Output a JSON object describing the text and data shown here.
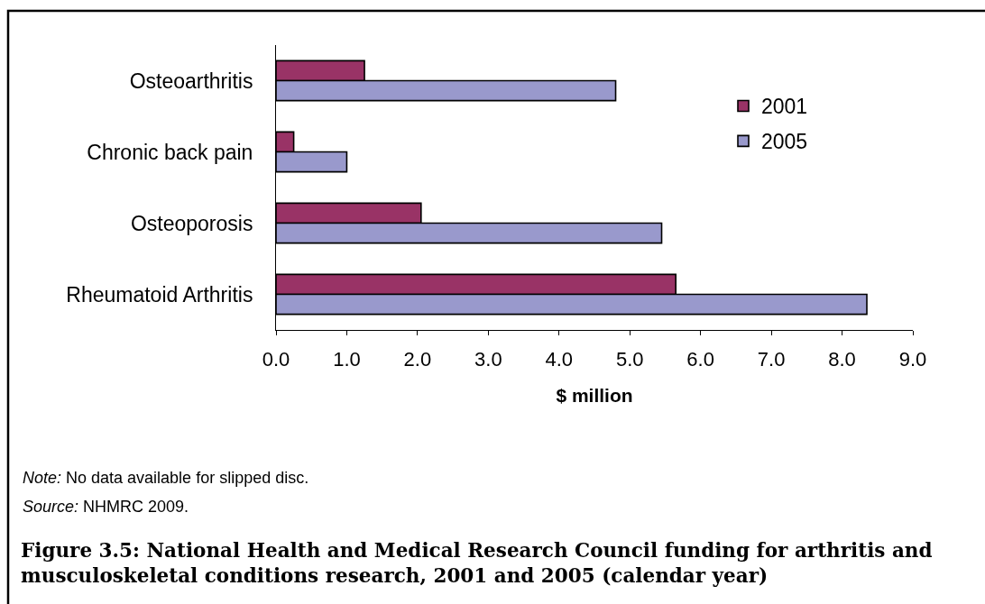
{
  "chart_data": {
    "type": "bar",
    "orientation": "horizontal",
    "title": "Figure 3.5: National Health and Medical Research Council funding for arthritis and musculoskeletal conditions research, 2001 and 2005 (calendar year)",
    "xlabel": "$ million",
    "categories": [
      "Osteoarthritis",
      "Chronic back pain",
      "Osteoporosis",
      "Rheumatoid Arthritis"
    ],
    "series": [
      {
        "name": "2001",
        "color": "#993366",
        "values": [
          1.25,
          0.25,
          2.05,
          5.65
        ]
      },
      {
        "name": "2005",
        "color": "#9999cc",
        "values": [
          4.8,
          1.0,
          5.45,
          8.35
        ]
      }
    ],
    "xlim": [
      0,
      9
    ],
    "xticks": [
      {
        "value": 0,
        "label": "0.0"
      },
      {
        "value": 1,
        "label": "1.0"
      },
      {
        "value": 2,
        "label": "2.0"
      },
      {
        "value": 3,
        "label": "3.0"
      },
      {
        "value": 4,
        "label": "4.0"
      },
      {
        "value": 5,
        "label": "5.0"
      },
      {
        "value": 6,
        "label": "6.0"
      },
      {
        "value": 7,
        "label": "7.0"
      },
      {
        "value": 8,
        "label": "8.0"
      },
      {
        "value": 9,
        "label": "9.0"
      }
    ],
    "grid": false,
    "legend": "top right",
    "annotations": [
      "Note: No data available for slipped disc.",
      "Source: NHMRC 2009."
    ]
  }
}
